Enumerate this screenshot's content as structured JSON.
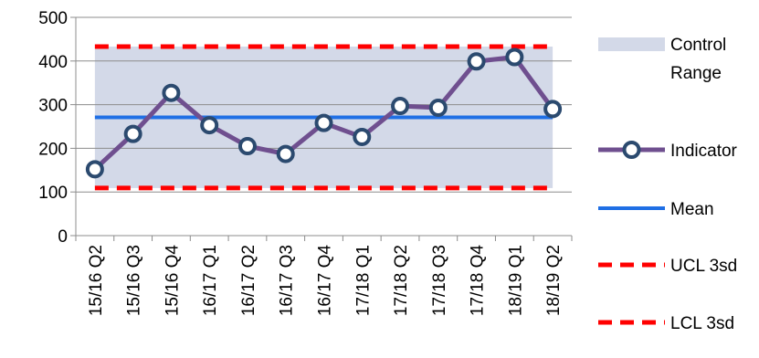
{
  "chart_data": {
    "type": "line",
    "title": "",
    "xlabel": "",
    "ylabel": "",
    "ylim": [
      0,
      500
    ],
    "yticks": [
      0,
      100,
      200,
      300,
      400,
      500
    ],
    "categories": [
      "15/16 Q2",
      "15/16 Q3",
      "15/16 Q4",
      "16/17 Q1",
      "16/17 Q2",
      "16/17 Q3",
      "16/17 Q4",
      "17/18 Q1",
      "17/18 Q2",
      "17/18 Q3",
      "17/18 Q4",
      "18/19 Q1",
      "18/19 Q2"
    ],
    "series": [
      {
        "name": "Indicator",
        "values": [
          152,
          233,
          327,
          253,
          205,
          187,
          258,
          226,
          297,
          293,
          399,
          409,
          290
        ],
        "color": "#6f4f8f",
        "marker_color": "#2b4a6f"
      },
      {
        "name": "Mean",
        "values": [
          271,
          271,
          271,
          271,
          271,
          271,
          271,
          271,
          271,
          271,
          271,
          271,
          271
        ],
        "color": "#1f6fe5"
      },
      {
        "name": "UCL 3sd",
        "values": [
          433,
          433,
          433,
          433,
          433,
          433,
          433,
          433,
          433,
          433,
          433,
          433,
          433
        ],
        "color": "#ff0000"
      },
      {
        "name": "LCL 3sd",
        "values": [
          109,
          109,
          109,
          109,
          109,
          109,
          109,
          109,
          109,
          109,
          109,
          109,
          109
        ],
        "color": "#ff0000"
      }
    ],
    "control_range": {
      "name": "Control Range",
      "low": 109,
      "high": 433,
      "color": "#d3d9e8"
    },
    "grid": true,
    "legend": "right"
  }
}
